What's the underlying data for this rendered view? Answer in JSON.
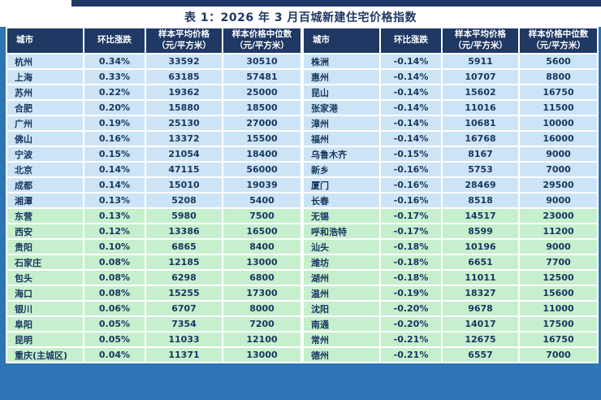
{
  "colors": {
    "frame": "#2e75b6",
    "header_bg": "#1f3864",
    "title_text": "#1f3864",
    "text": "#17375e",
    "band_blue": "#cde4f6",
    "band_green": "#c6efce"
  },
  "chart_data": {
    "type": "table",
    "title": "表 1：2026 年 3 月百城新建住宅价格指数",
    "band_split": 10,
    "columns": [
      {
        "key": "city",
        "label": "城市",
        "lines": [
          "城市"
        ]
      },
      {
        "key": "change",
        "label": "环比涨跌",
        "lines": [
          "环比涨跌"
        ]
      },
      {
        "key": "avg",
        "label": "样本平均价格（元/平方米）",
        "lines": [
          "样本平均价格",
          "（元/平方米）"
        ]
      },
      {
        "key": "median",
        "label": "样本价格中位数（元/平方米）",
        "lines": [
          "样本价格中位数",
          "（元/平方米）"
        ]
      }
    ],
    "tables": [
      {
        "name": "rising-cities",
        "rows": [
          {
            "city": "杭州",
            "change": "0.34%",
            "avg": 33592,
            "median": 30510
          },
          {
            "city": "上海",
            "change": "0.33%",
            "avg": 63185,
            "median": 57481
          },
          {
            "city": "苏州",
            "change": "0.22%",
            "avg": 19362,
            "median": 25000
          },
          {
            "city": "合肥",
            "change": "0.20%",
            "avg": 15880,
            "median": 18500
          },
          {
            "city": "广州",
            "change": "0.19%",
            "avg": 25130,
            "median": 27000
          },
          {
            "city": "佛山",
            "change": "0.16%",
            "avg": 13372,
            "median": 15500
          },
          {
            "city": "宁波",
            "change": "0.15%",
            "avg": 21054,
            "median": 18400
          },
          {
            "city": "北京",
            "change": "0.14%",
            "avg": 47115,
            "median": 56000
          },
          {
            "city": "成都",
            "change": "0.14%",
            "avg": 15010,
            "median": 19039
          },
          {
            "city": "湘潭",
            "change": "0.13%",
            "avg": 5208,
            "median": 5400
          },
          {
            "city": "东营",
            "change": "0.13%",
            "avg": 5980,
            "median": 7500
          },
          {
            "city": "西安",
            "change": "0.12%",
            "avg": 13386,
            "median": 16500
          },
          {
            "city": "贵阳",
            "change": "0.10%",
            "avg": 6865,
            "median": 8400
          },
          {
            "city": "石家庄",
            "change": "0.08%",
            "avg": 12185,
            "median": 13000
          },
          {
            "city": "包头",
            "change": "0.08%",
            "avg": 6298,
            "median": 6800
          },
          {
            "city": "海口",
            "change": "0.08%",
            "avg": 15255,
            "median": 17300
          },
          {
            "city": "银川",
            "change": "0.06%",
            "avg": 6707,
            "median": 8000
          },
          {
            "city": "阜阳",
            "change": "0.05%",
            "avg": 7354,
            "median": 7200
          },
          {
            "city": "昆明",
            "change": "0.05%",
            "avg": 11033,
            "median": 12100
          },
          {
            "city": "重庆(主城区)",
            "change": "0.04%",
            "avg": 11371,
            "median": 13000
          }
        ]
      },
      {
        "name": "falling-cities",
        "rows": [
          {
            "city": "株洲",
            "change": "-0.14%",
            "avg": 5911,
            "median": 5600
          },
          {
            "city": "惠州",
            "change": "-0.14%",
            "avg": 10707,
            "median": 8800
          },
          {
            "city": "昆山",
            "change": "-0.14%",
            "avg": 15602,
            "median": 16750
          },
          {
            "city": "张家港",
            "change": "-0.14%",
            "avg": 11016,
            "median": 11500
          },
          {
            "city": "漳州",
            "change": "-0.14%",
            "avg": 10681,
            "median": 10000
          },
          {
            "city": "福州",
            "change": "-0.14%",
            "avg": 16768,
            "median": 16000
          },
          {
            "city": "乌鲁木齐",
            "change": "-0.15%",
            "avg": 8167,
            "median": 9000
          },
          {
            "city": "新乡",
            "change": "-0.16%",
            "avg": 5753,
            "median": 7000
          },
          {
            "city": "厦门",
            "change": "-0.16%",
            "avg": 28469,
            "median": 29500
          },
          {
            "city": "长春",
            "change": "-0.16%",
            "avg": 8518,
            "median": 9000
          },
          {
            "city": "无锡",
            "change": "-0.17%",
            "avg": 14517,
            "median": 23000
          },
          {
            "city": "呼和浩特",
            "change": "-0.17%",
            "avg": 8599,
            "median": 11200
          },
          {
            "city": "汕头",
            "change": "-0.18%",
            "avg": 10196,
            "median": 9000
          },
          {
            "city": "潍坊",
            "change": "-0.18%",
            "avg": 6651,
            "median": 7700
          },
          {
            "city": "湖州",
            "change": "-0.18%",
            "avg": 11011,
            "median": 12500
          },
          {
            "city": "温州",
            "change": "-0.19%",
            "avg": 18327,
            "median": 15600
          },
          {
            "city": "沈阳",
            "change": "-0.20%",
            "avg": 9678,
            "median": 11000
          },
          {
            "city": "南通",
            "change": "-0.20%",
            "avg": 14017,
            "median": 17500
          },
          {
            "city": "常州",
            "change": "-0.21%",
            "avg": 12675,
            "median": 16750
          },
          {
            "city": "德州",
            "change": "-0.21%",
            "avg": 6557,
            "median": 7000
          }
        ]
      }
    ]
  }
}
